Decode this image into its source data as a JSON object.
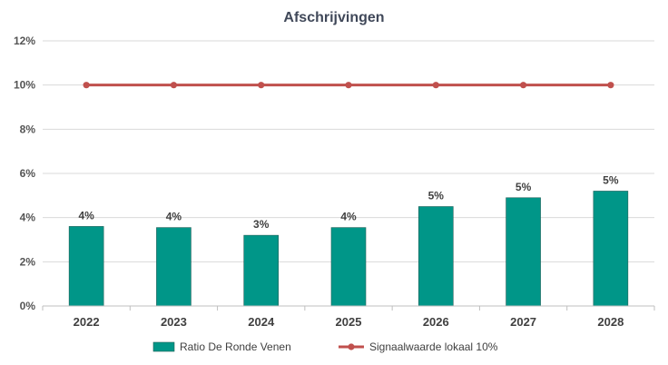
{
  "chart_data": {
    "type": "bar",
    "title": "Afschrijvingen",
    "categories": [
      "2022",
      "2023",
      "2024",
      "2025",
      "2026",
      "2027",
      "2028"
    ],
    "ylim": [
      0,
      12
    ],
    "yticks": [
      "0%",
      "2%",
      "4%",
      "6%",
      "8%",
      "10%",
      "12%"
    ],
    "ytick_values": [
      0,
      2,
      4,
      6,
      8,
      10,
      12
    ],
    "grid": true,
    "legend_position": "bottom",
    "series": [
      {
        "name": "Ratio De Ronde Venen",
        "kind": "bar",
        "color": "#009688",
        "values": [
          3.6,
          3.55,
          3.2,
          3.55,
          4.5,
          4.9,
          5.2
        ],
        "labels": [
          "4%",
          "4%",
          "3%",
          "4%",
          "5%",
          "5%",
          "5%"
        ]
      },
      {
        "name": "Signaalwaarde lokaal 10%",
        "kind": "line",
        "color": "#C0504D",
        "values": [
          10,
          10,
          10,
          10,
          10,
          10,
          10
        ]
      }
    ]
  }
}
